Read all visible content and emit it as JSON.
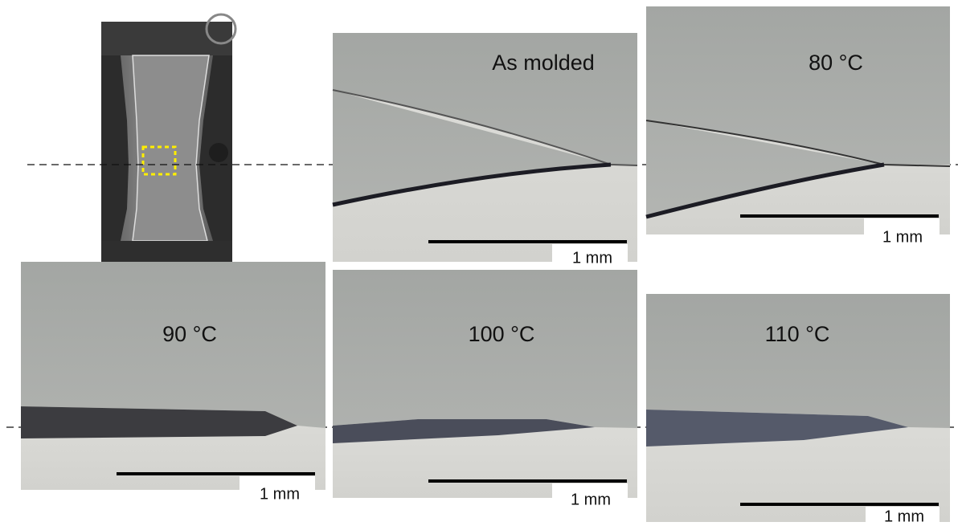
{
  "panels": [
    {
      "label": "As molded",
      "scale_label": "1 mm"
    },
    {
      "label": "80 °C",
      "scale_label": "1 mm"
    },
    {
      "label": "90 °C",
      "scale_label": "1 mm"
    },
    {
      "label": "100 °C",
      "scale_label": "1 mm"
    },
    {
      "label": "110 °C",
      "scale_label": "1 mm"
    }
  ]
}
